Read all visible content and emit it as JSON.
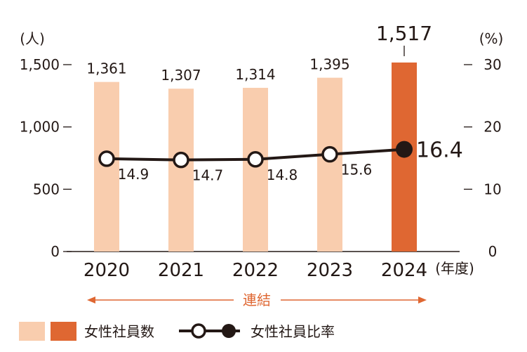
{
  "chart_data": {
    "type": "bar",
    "categories": [
      "2020",
      "2021",
      "2022",
      "2023",
      "2024"
    ],
    "series": [
      {
        "name": "女性社員数",
        "type": "bar",
        "axis": "left",
        "values": [
          1361,
          1307,
          1314,
          1395,
          1517
        ],
        "labels": [
          "1,361",
          "1,307",
          "1,314",
          "1,395",
          "1,517"
        ]
      },
      {
        "name": "女性社員比率",
        "type": "line",
        "axis": "right",
        "values": [
          14.9,
          14.7,
          14.8,
          15.6,
          16.4
        ],
        "labels": [
          "14.9",
          "14.7",
          "14.8",
          "15.6",
          "16.4"
        ]
      }
    ],
    "left_axis": {
      "unit": "(人)",
      "range": [
        0,
        1500
      ],
      "ticks": [
        0,
        500,
        1000,
        1500
      ],
      "tick_labels": [
        "0",
        "500",
        "1,000",
        "1,500"
      ]
    },
    "right_axis": {
      "unit": "(%)",
      "range": [
        0,
        30
      ],
      "ticks": [
        0,
        10,
        20,
        30
      ],
      "tick_labels": [
        "0",
        "10",
        "20",
        "30"
      ]
    },
    "x_axis_unit": "(年度)",
    "scope_label": "連結",
    "colors": {
      "bar": "#f9cdae",
      "bar_highlight": "#df6732",
      "line": "#231815",
      "arrow": "#df6732"
    }
  }
}
